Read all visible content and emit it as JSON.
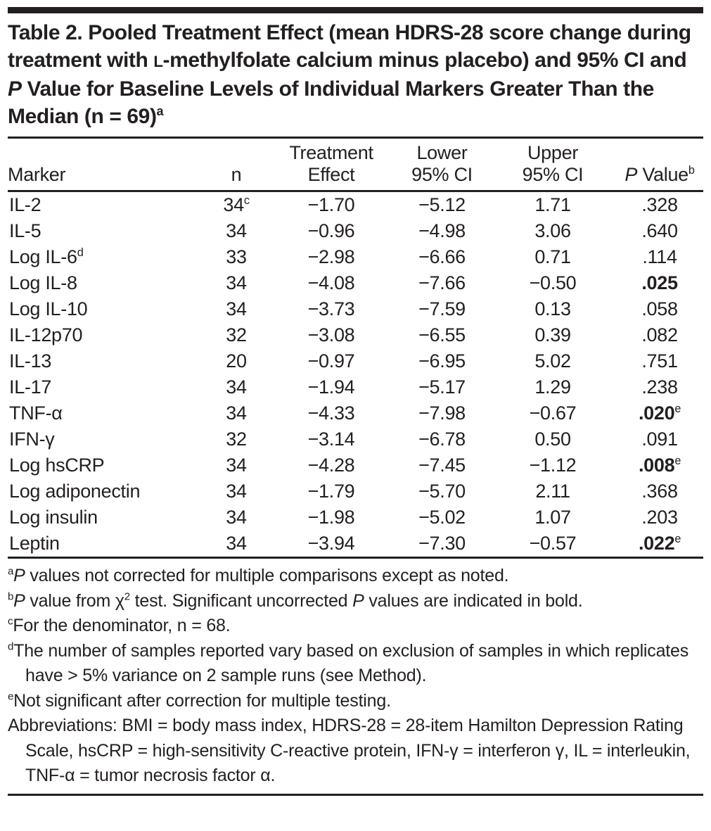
{
  "colors": {
    "text": "#231f20",
    "rule": "#231f20",
    "background": "#ffffff"
  },
  "table": {
    "title": {
      "prefix": "Table 2. Pooled Treatment Effect (mean HDRS-28 score change during treatment with ",
      "small_cap": "L",
      "middle": "-methylfolate calcium minus placebo) and 95% CI and ",
      "italic_p": "P",
      "suffix": " Value for Baseline Levels of Individual Markers Greater Than the Median (n = 69)",
      "footnote_marker": "a"
    },
    "header": {
      "marker": "Marker",
      "n": "n",
      "effect_line1": "Treatment",
      "effect_line2": "Effect",
      "lower_line1": "Lower",
      "lower_line2": "95% CI",
      "upper_line1": "Upper",
      "upper_line2": "95% CI",
      "p_italic": "P",
      "p_rest": " Value",
      "p_sup": "b"
    },
    "rows": [
      {
        "marker": "IL-2",
        "marker_sup": "",
        "n": "34",
        "n_sup": "c",
        "effect": "−1.70",
        "lower": "−5.12",
        "upper": "1.71",
        "p": ".328",
        "p_sup": "",
        "p_bold": false
      },
      {
        "marker": "IL-5",
        "marker_sup": "",
        "n": "34",
        "n_sup": "",
        "effect": "−0.96",
        "lower": "−4.98",
        "upper": "3.06",
        "p": ".640",
        "p_sup": "",
        "p_bold": false
      },
      {
        "marker": "Log IL-6",
        "marker_sup": "d",
        "n": "33",
        "n_sup": "",
        "effect": "−2.98",
        "lower": "−6.66",
        "upper": "0.71",
        "p": ".114",
        "p_sup": "",
        "p_bold": false
      },
      {
        "marker": "Log IL-8",
        "marker_sup": "",
        "n": "34",
        "n_sup": "",
        "effect": "−4.08",
        "lower": "−7.66",
        "upper": "−0.50",
        "p": ".025",
        "p_sup": "",
        "p_bold": true
      },
      {
        "marker": "Log IL-10",
        "marker_sup": "",
        "n": "34",
        "n_sup": "",
        "effect": "−3.73",
        "lower": "−7.59",
        "upper": "0.13",
        "p": ".058",
        "p_sup": "",
        "p_bold": false
      },
      {
        "marker": "IL-12p70",
        "marker_sup": "",
        "n": "32",
        "n_sup": "",
        "effect": "−3.08",
        "lower": "−6.55",
        "upper": "0.39",
        "p": ".082",
        "p_sup": "",
        "p_bold": false
      },
      {
        "marker": "IL-13",
        "marker_sup": "",
        "n": "20",
        "n_sup": "",
        "effect": "−0.97",
        "lower": "−6.95",
        "upper": "5.02",
        "p": ".751",
        "p_sup": "",
        "p_bold": false
      },
      {
        "marker": "IL-17",
        "marker_sup": "",
        "n": "34",
        "n_sup": "",
        "effect": "−1.94",
        "lower": "−5.17",
        "upper": "1.29",
        "p": ".238",
        "p_sup": "",
        "p_bold": false
      },
      {
        "marker": "TNF-α",
        "marker_sup": "",
        "n": "34",
        "n_sup": "",
        "effect": "−4.33",
        "lower": "−7.98",
        "upper": "−0.67",
        "p": ".020",
        "p_sup": "e",
        "p_bold": true
      },
      {
        "marker": "IFN-γ",
        "marker_sup": "",
        "n": "32",
        "n_sup": "",
        "effect": "−3.14",
        "lower": "−6.78",
        "upper": "0.50",
        "p": ".091",
        "p_sup": "",
        "p_bold": false
      },
      {
        "marker": "Log hsCRP",
        "marker_sup": "",
        "n": "34",
        "n_sup": "",
        "effect": "−4.28",
        "lower": "−7.45",
        "upper": "−1.12",
        "p": ".008",
        "p_sup": "e",
        "p_bold": true
      },
      {
        "marker": "Log adiponectin",
        "marker_sup": "",
        "n": "34",
        "n_sup": "",
        "effect": "−1.79",
        "lower": "−5.70",
        "upper": "2.11",
        "p": ".368",
        "p_sup": "",
        "p_bold": false
      },
      {
        "marker": "Log insulin",
        "marker_sup": "",
        "n": "34",
        "n_sup": "",
        "effect": "−1.98",
        "lower": "−5.02",
        "upper": "1.07",
        "p": ".203",
        "p_sup": "",
        "p_bold": false
      },
      {
        "marker": "Leptin",
        "marker_sup": "",
        "n": "34",
        "n_sup": "",
        "effect": "−3.94",
        "lower": "−7.30",
        "upper": "−0.57",
        "p": ".022",
        "p_sup": "e",
        "p_bold": true
      }
    ],
    "footnotes": [
      {
        "marker": "a",
        "parts": [
          {
            "text": "P",
            "italic": true
          },
          {
            "text": " values not corrected for multiple comparisons except as noted."
          }
        ]
      },
      {
        "marker": "b",
        "parts": [
          {
            "text": "P",
            "italic": true
          },
          {
            "text": " value from χ"
          },
          {
            "text": "2",
            "sup": true
          },
          {
            "text": " test. Significant uncorrected "
          },
          {
            "text": "P",
            "italic": true
          },
          {
            "text": " values are indicated in bold."
          }
        ]
      },
      {
        "marker": "c",
        "parts": [
          {
            "text": "For the denominator, n = 68."
          }
        ]
      },
      {
        "marker": "d",
        "parts": [
          {
            "text": "The number of samples reported vary based on exclusion of samples in which replicates have > 5% variance on 2 sample runs (see Method)."
          }
        ]
      },
      {
        "marker": "e",
        "parts": [
          {
            "text": "Not significant after correction for multiple testing."
          }
        ]
      },
      {
        "marker": "",
        "parts": [
          {
            "text": "Abbreviations: BMI = body mass index, HDRS-28 = 28-item Hamilton Depression Rating Scale, hsCRP = high-sensitivity C-reactive protein, IFN-γ = interferon γ, IL = interleukin, TNF-α = tumor necrosis factor α."
          }
        ]
      }
    ]
  }
}
